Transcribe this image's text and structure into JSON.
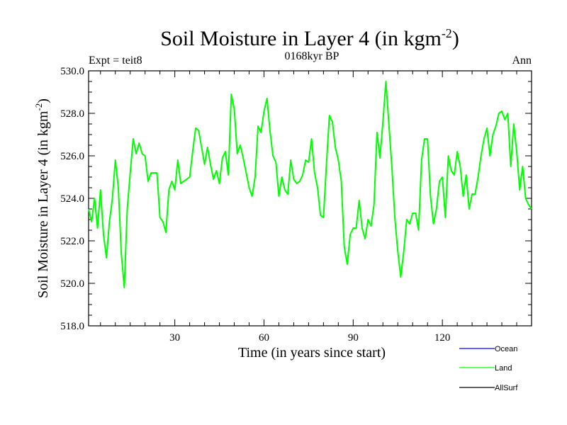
{
  "chart_data": {
    "type": "line",
    "title": "Soil Moisture in Layer 4 (in kgm",
    "title_sup": "-2",
    "title_end": ")",
    "subtitle_left": "Expt = teit8",
    "subtitle_center": "0168kyr BP",
    "subtitle_right": "Ann",
    "xlabel": "Time (in years since start)",
    "ylabel": "Soil Moisture in Layer 4 (in kgm",
    "ylabel_sup": "-2",
    "ylabel_end": ")",
    "xlim": [
      1,
      150
    ],
    "ylim": [
      518,
      530
    ],
    "x_ticks": [
      30,
      60,
      90,
      120
    ],
    "x_tick_labels": [
      "30",
      "60",
      "90",
      "120"
    ],
    "y_ticks": [
      518,
      520,
      522,
      524,
      526,
      528,
      530
    ],
    "y_tick_labels": [
      "518.0",
      "520.0",
      "522.0",
      "524.0",
      "526.0",
      "528.0",
      "530.0"
    ],
    "legend": [
      {
        "name": "Ocean",
        "color": "#0000ff"
      },
      {
        "name": "Land",
        "color": "#00ff00"
      },
      {
        "name": "AllSurf",
        "color": "#000000"
      }
    ],
    "series": [
      {
        "name": "Land",
        "color": "#00ff00",
        "x_start": 1,
        "values": [
          523.5,
          522.9,
          524.0,
          522.6,
          524.4,
          522.3,
          521.2,
          522.9,
          524.0,
          525.8,
          524.5,
          521.4,
          519.8,
          523.5,
          525.2,
          526.8,
          526.1,
          526.6,
          526.1,
          526.0,
          524.8,
          525.2,
          525.2,
          525.2,
          523.1,
          522.9,
          522.4,
          524.4,
          524.8,
          524.4,
          525.8,
          524.7,
          524.8,
          524.9,
          525.0,
          526.2,
          527.3,
          527.2,
          526.4,
          525.6,
          526.4,
          525.6,
          524.9,
          525.3,
          524.7,
          525.9,
          526.2,
          525.1,
          528.9,
          528.2,
          526.1,
          526.5,
          525.9,
          525.2,
          524.5,
          524.1,
          525.0,
          527.4,
          527.1,
          528.1,
          528.7,
          527.2,
          526.0,
          525.7,
          524.1,
          525.0,
          524.4,
          524.2,
          525.8,
          524.9,
          524.7,
          524.8,
          525.1,
          525.8,
          525.7,
          526.8,
          525.2,
          524.5,
          523.2,
          523.1,
          525.6,
          527.9,
          527.6,
          526.4,
          525.8,
          524.8,
          521.7,
          520.9,
          522.3,
          522.6,
          522.6,
          523.9,
          522.6,
          522.1,
          523.0,
          522.7,
          523.7,
          527.1,
          525.9,
          527.6,
          529.5,
          527.5,
          525.5,
          523.1,
          521.5,
          520.3,
          521.5,
          523.0,
          522.8,
          523.3,
          523.3,
          522.5,
          525.8,
          526.8,
          526.8,
          524.1,
          522.8,
          523.5,
          524.8,
          525.0,
          523.1,
          526.0,
          525.3,
          525.1,
          526.2,
          525.5,
          524.1,
          525.1,
          523.5,
          524.2,
          524.2,
          525.0,
          526.0,
          526.8,
          527.3,
          526.0,
          527.0,
          527.4,
          528.0,
          528.1,
          527.7,
          528.0,
          525.5,
          527.5,
          526.2,
          524.4,
          525.5,
          524.0,
          523.7,
          523.5
        ]
      }
    ]
  }
}
